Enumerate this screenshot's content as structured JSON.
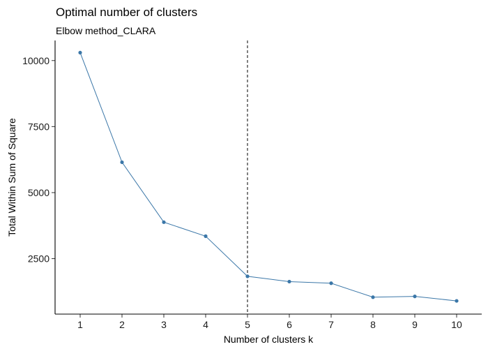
{
  "chart_data": {
    "type": "line",
    "title": "Optimal number of clusters",
    "subtitle": "Elbow method_CLARA",
    "xlabel": "Number of clusters k",
    "ylabel": "Total Within Sum of Square",
    "x": [
      1,
      2,
      3,
      4,
      5,
      6,
      7,
      8,
      9,
      10
    ],
    "series": [
      {
        "values": [
          10300,
          6150,
          3880,
          3350,
          1830,
          1630,
          1570,
          1040,
          1070,
          900
        ]
      }
    ],
    "x_ticks": [
      "1",
      "2",
      "3",
      "4",
      "5",
      "6",
      "7",
      "8",
      "9",
      "10"
    ],
    "y_ticks": [
      2500,
      5000,
      7500,
      10000
    ],
    "xlim": [
      0.4,
      10.6
    ],
    "ylim": [
      400,
      10760
    ],
    "vline_x": 5,
    "grid": false,
    "colors": {
      "line": "#3b77a8",
      "point": "#3b77a8",
      "vline": "#000000"
    }
  }
}
